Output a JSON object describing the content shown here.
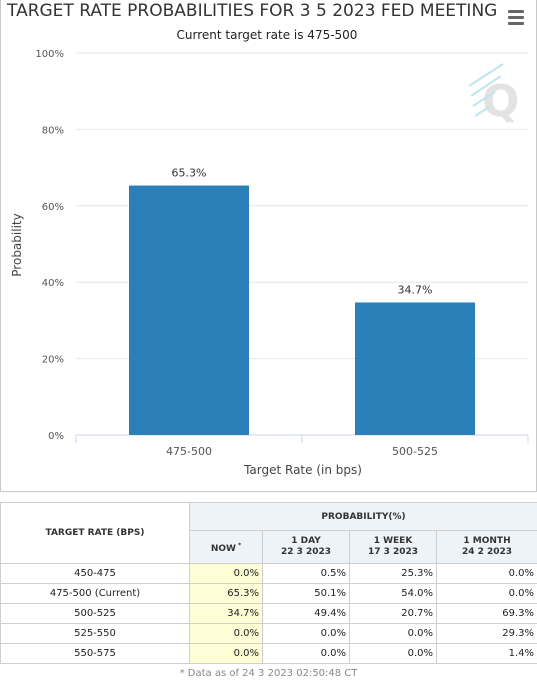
{
  "chart_data": {
    "type": "bar",
    "title": "TARGET RATE PROBABILITIES FOR 3 5 2023 FED MEETING",
    "subtitle": "Current target rate is 475-500",
    "categories": [
      "475-500",
      "500-525"
    ],
    "values": [
      65.3,
      34.7
    ],
    "data_labels": [
      "65.3%",
      "34.7%"
    ],
    "xlabel": "Target Rate (in bps)",
    "ylabel": "Probability",
    "ylim": [
      0,
      100
    ],
    "yticks": [
      0,
      20,
      40,
      60,
      80,
      100
    ],
    "ytick_labels": [
      "0%",
      "20%",
      "40%",
      "60%",
      "80%",
      "100%"
    ],
    "grid": "horizontal",
    "legend": "none",
    "bar_color": "#2b80b9"
  },
  "menu_icon": "hamburger-menu-icon",
  "watermark_icon": "q-logo-icon",
  "table": {
    "rate_header": "TARGET RATE (BPS)",
    "prob_header": "PROBABILITY(%)",
    "columns": [
      {
        "line1": "NOW",
        "line2": "*"
      },
      {
        "line1": "1 DAY",
        "line2": "22 3 2023"
      },
      {
        "line1": "1 WEEK",
        "line2": "17 3 2023"
      },
      {
        "line1": "1 MONTH",
        "line2": "24 2 2023"
      }
    ],
    "rows": [
      {
        "rate": "450-475",
        "values": [
          "0.0%",
          "0.5%",
          "25.3%",
          "0.0%"
        ]
      },
      {
        "rate": "475-500 (Current)",
        "values": [
          "65.3%",
          "50.1%",
          "54.0%",
          "0.0%"
        ]
      },
      {
        "rate": "500-525",
        "values": [
          "34.7%",
          "49.4%",
          "20.7%",
          "69.3%"
        ]
      },
      {
        "rate": "525-550",
        "values": [
          "0.0%",
          "0.0%",
          "0.0%",
          "29.3%"
        ]
      },
      {
        "rate": "550-575",
        "values": [
          "0.0%",
          "0.0%",
          "0.0%",
          "1.4%"
        ]
      }
    ],
    "footnote": "* Data as of 24 3 2023 02:50:48 CT"
  }
}
